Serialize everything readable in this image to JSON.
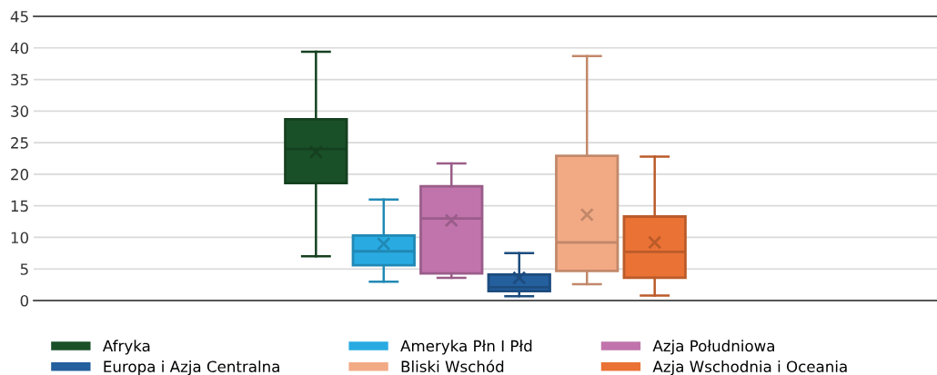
{
  "chart_data": {
    "type": "box",
    "categories": [
      null
    ],
    "ylim": [
      0,
      45
    ],
    "yticks": [
      0,
      5,
      10,
      15,
      20,
      25,
      30,
      35,
      40,
      45
    ],
    "grid": "y",
    "legend": "bottom",
    "series": [
      {
        "name": "Afryka",
        "color": "#1a5028",
        "boxes": [
          {
            "low": 7.0,
            "q1": 18.6,
            "median": 24.0,
            "q3": 28.7,
            "high": 39.4,
            "mean": 23.5
          }
        ]
      },
      {
        "name": "Ameryka Płn I Płd",
        "color": "#29abe2",
        "boxes": [
          {
            "low": 3.0,
            "q1": 5.6,
            "median": 7.8,
            "q3": 10.3,
            "high": 16.0,
            "mean": 9.0
          }
        ]
      },
      {
        "name": "Azja Południowa",
        "color": "#c074ab",
        "boxes": [
          {
            "low": 3.6,
            "q1": 4.3,
            "median": 13.0,
            "q3": 18.1,
            "high": 21.7,
            "mean": 12.7
          }
        ]
      },
      {
        "name": "Europa i Azja Centralna",
        "color": "#245f9e",
        "boxes": [
          {
            "low": 0.7,
            "q1": 1.5,
            "median": 2.1,
            "q3": 4.1,
            "high": 7.5,
            "mean": 3.6
          }
        ]
      },
      {
        "name": "Bliski Wschód",
        "color": "#f2aa85",
        "boxes": [
          {
            "low": 2.6,
            "q1": 4.7,
            "median": 9.2,
            "q3": 22.9,
            "high": 38.7,
            "mean": 13.6
          }
        ]
      },
      {
        "name": "Azja Wschodnia i Oceania",
        "color": "#ea7235",
        "boxes": [
          {
            "low": 0.8,
            "q1": 3.6,
            "median": 7.7,
            "q3": 13.3,
            "high": 22.8,
            "mean": 9.2
          }
        ]
      }
    ]
  }
}
